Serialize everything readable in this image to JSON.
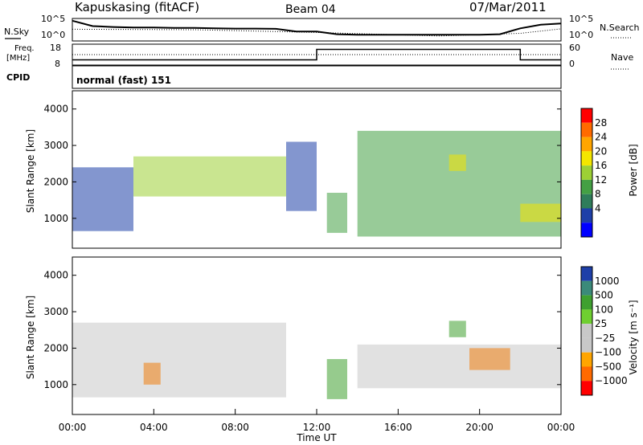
{
  "header": {
    "station": "Kapuskasing (fitACF)",
    "beam": "Beam 04",
    "date": "07/Mar/2011"
  },
  "noise_panel": {
    "left_label": "N.Sky",
    "right_label": "N.Search",
    "left_ticks": [
      "10^5",
      "10^0"
    ],
    "right_ticks": [
      "10^5",
      "10^0"
    ]
  },
  "freq_panel": {
    "left_label_1": "Freq.",
    "left_label_2": "[MHz]",
    "left_ticks": [
      "18",
      "8"
    ],
    "right_label": "Nave",
    "right_ticks": [
      "60",
      "0"
    ]
  },
  "cpid": {
    "label": "CPID",
    "value": "normal (fast) 151"
  },
  "colors": {
    "power_scale": [
      "#0000ff",
      "#1e3fa8",
      "#2f7d5a",
      "#44a044",
      "#9dd035",
      "#f4e600",
      "#ffa500",
      "#ff6a00",
      "#ff0000"
    ],
    "velocity_scale": [
      "#1e3fa8",
      "#3b8a7a",
      "#3fa030",
      "#6fcf30",
      "#c8c8c8",
      "#c8c8c8",
      "#ffa500",
      "#ff6a00",
      "#ff0000"
    ],
    "velocity_dense": "#f08010",
    "ground_scatter": "#c8c8c8"
  },
  "chart_data": [
    {
      "type": "line",
      "panel": "noise",
      "series": [
        {
          "name": "N.Sky",
          "x": [
            "00:00",
            "01:00",
            "02:00",
            "03:00",
            "04:00",
            "05:00",
            "06:00",
            "07:00",
            "08:00",
            "09:00",
            "10:00",
            "11:00",
            "12:00",
            "13:00",
            "14:00",
            "15:00",
            "16:00",
            "17:00",
            "18:00",
            "19:00",
            "20:00",
            "21:00",
            "22:00",
            "23:00",
            "24:00"
          ],
          "y_norm": [
            0.9,
            0.66,
            0.62,
            0.6,
            0.6,
            0.58,
            0.58,
            0.56,
            0.55,
            0.55,
            0.54,
            0.42,
            0.42,
            0.3,
            0.28,
            0.28,
            0.28,
            0.28,
            0.28,
            0.28,
            0.28,
            0.3,
            0.56,
            0.72,
            0.78
          ]
        },
        {
          "name": "N.Search",
          "x": [
            "00:00",
            "06:00",
            "12:00",
            "18:00",
            "22:00",
            "24:00"
          ],
          "y_norm": [
            0.52,
            0.5,
            0.38,
            0.22,
            0.34,
            0.54
          ]
        }
      ],
      "xlim": [
        "00:00",
        "24:00"
      ]
    },
    {
      "type": "line",
      "panel": "frequency",
      "ylim": [
        8,
        18
      ],
      "series": [
        {
          "name": "Freq.",
          "x": [
            "00:00",
            "12:00",
            "12:00",
            "22:00",
            "22:00",
            "24:00"
          ],
          "values": [
            10.5,
            10.5,
            15.5,
            15.5,
            10.5,
            10.5
          ]
        }
      ]
    },
    {
      "type": "heatmap",
      "panel": "power",
      "title": "Power [dB]",
      "ylabel": "Slant Range [km]",
      "ylim": [
        180,
        4500
      ],
      "yticks": [
        "1000",
        "2000",
        "3000",
        "4000"
      ],
      "colorbar_ticks": [
        "4",
        "8",
        "12",
        "16",
        "20",
        "24",
        "28"
      ],
      "echo_regions": [
        {
          "t": "00:00-03:00",
          "range_km": [
            650,
            2400
          ],
          "power_db": 4
        },
        {
          "t": "03:00-10:30",
          "range_km": [
            1600,
            2700
          ],
          "power_db": 14
        },
        {
          "t": "10:30-12:00",
          "range_km": [
            1200,
            3100
          ],
          "power_db": 4
        },
        {
          "t": "12:30-13:30",
          "range_km": [
            600,
            1700
          ],
          "power_db": 12
        },
        {
          "t": "14:00-24:00",
          "range_km": [
            500,
            3400
          ],
          "power_db": 10
        },
        {
          "t": "18:30-19:20",
          "range_km": [
            2300,
            2750
          ],
          "power_db": 18
        },
        {
          "t": "22:00-24:00",
          "range_km": [
            900,
            1400
          ],
          "power_db": 20
        }
      ]
    },
    {
      "type": "heatmap",
      "panel": "velocity",
      "title": "Velocity [m s⁻¹]",
      "ylabel": "Slant Range [km]",
      "ylim": [
        180,
        4500
      ],
      "yticks": [
        "1000",
        "2000",
        "3000",
        "4000"
      ],
      "colorbar_ticks": [
        "1000",
        "500",
        "100",
        "25",
        "−25",
        "−100",
        "−500",
        "−1000"
      ],
      "echo_regions": [
        {
          "t": "00:00-10:30",
          "range_km": [
            650,
            2700
          ],
          "velocity_ms": 0
        },
        {
          "t": "03:30-04:20",
          "range_km": [
            1000,
            1600
          ],
          "velocity_ms": -200
        },
        {
          "t": "12:30-13:30",
          "range_km": [
            600,
            1700
          ],
          "velocity_ms": 150
        },
        {
          "t": "14:00-24:00",
          "range_km": [
            900,
            2100
          ],
          "velocity_ms": 0
        },
        {
          "t": "19:30-21:30",
          "range_km": [
            1400,
            2000
          ],
          "velocity_ms": -400
        },
        {
          "t": "18:30-19:20",
          "range_km": [
            2300,
            2750
          ],
          "velocity_ms": 150
        }
      ],
      "xlabel": "Time UT",
      "xticks": [
        "00:00",
        "04:00",
        "08:00",
        "12:00",
        "16:00",
        "20:00",
        "00:00"
      ]
    }
  ]
}
